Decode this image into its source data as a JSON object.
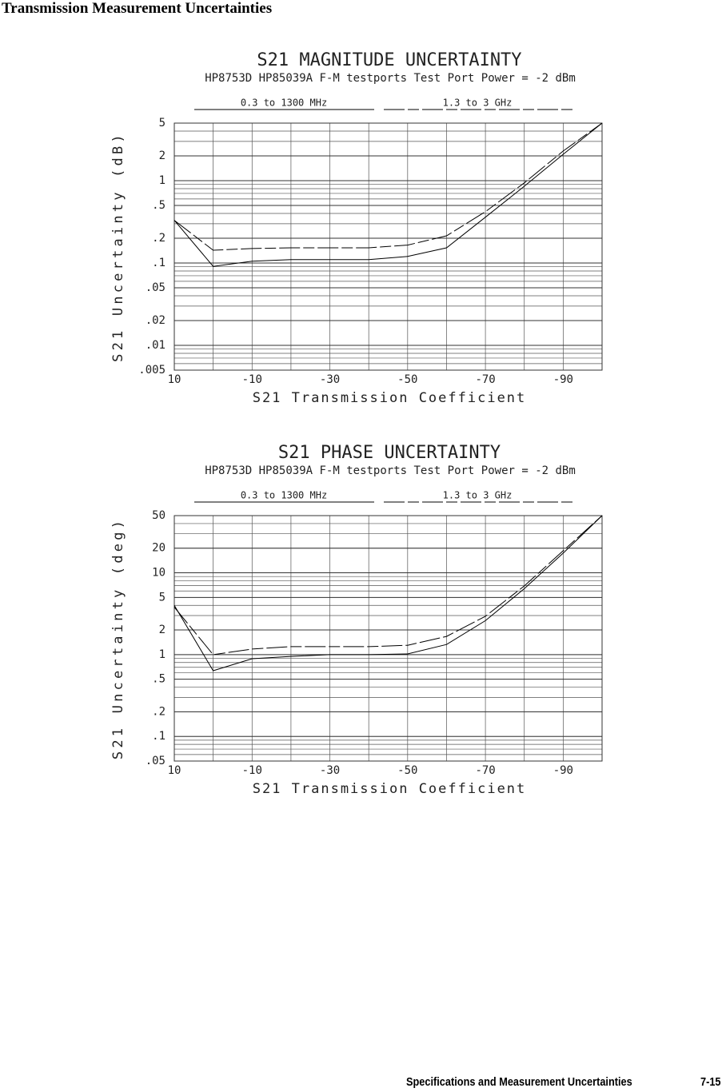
{
  "header": {
    "title": "Transmission Measurement Uncertainties"
  },
  "footer": {
    "section": "Specifications and Measurement Uncertainties",
    "page": "7-15"
  },
  "chart_data": [
    {
      "type": "line",
      "title": "S21 MAGNITUDE UNCERTAINTY",
      "subtitle": "HP8753D HP85039A F-M testports Test Port Power = -2 dBm",
      "xlabel": "S21 Transmission Coefficient",
      "ylabel": "S21 Uncertainty (dB)",
      "x": [
        10,
        0,
        -10,
        -20,
        -30,
        -40,
        -50,
        -60,
        -70,
        -80,
        -90,
        -100
      ],
      "series": [
        {
          "name": "0.3 to 1300 MHz",
          "color": "#000000",
          "dashed": false,
          "values": [
            0.33,
            0.091,
            0.105,
            0.11,
            0.11,
            0.11,
            0.12,
            0.153,
            0.36,
            0.855,
            2.09,
            5
          ]
        },
        {
          "name": "1.3 to 3 GHz",
          "color": "#000000",
          "dashed": true,
          "values": [
            0.33,
            0.143,
            0.15,
            0.153,
            0.153,
            0.153,
            0.165,
            0.214,
            0.42,
            0.94,
            2.29,
            5
          ]
        }
      ],
      "xlim": [
        10,
        -100
      ],
      "xticks": [
        10,
        -10,
        -30,
        -50,
        -70,
        -90
      ],
      "xgrid": [
        10,
        0,
        -10,
        -20,
        -30,
        -40,
        -50,
        -60,
        -70,
        -80,
        -90,
        -100
      ],
      "ylim": [
        0.005,
        5
      ],
      "yscale": "log",
      "grid": true,
      "yticks": [
        5,
        2,
        1,
        {
          "value": 0.5,
          "label": ".5"
        },
        {
          "value": 0.2,
          "label": ".2"
        },
        {
          "value": 0.1,
          "label": ".1"
        },
        {
          "value": 0.05,
          "label": ".05"
        },
        {
          "value": 0.02,
          "label": ".02"
        },
        {
          "value": 0.01,
          "label": ".01"
        },
        {
          "value": 0.005,
          "label": ".005"
        }
      ]
    },
    {
      "type": "line",
      "title": "S21 PHASE UNCERTAINTY",
      "subtitle": "HP8753D HP85039A F-M testports Test Port Power = -2 dBm",
      "xlabel": "S21 Transmission Coefficient",
      "ylabel": "S21 Uncertainty (deg)",
      "x": [
        10,
        0,
        -10,
        -20,
        -30,
        -40,
        -50,
        -60,
        -70,
        -80,
        -90,
        -100
      ],
      "series": [
        {
          "name": "0.3 to 1300 MHz",
          "color": "#000000",
          "dashed": false,
          "values": [
            4.0,
            0.635,
            0.89,
            0.95,
            1.0,
            1.0,
            1.02,
            1.33,
            2.6,
            6.4,
            17.4,
            50
          ]
        },
        {
          "name": "1.3 to 3 GHz",
          "color": "#000000",
          "dashed": true,
          "values": [
            3.8,
            1.0,
            1.17,
            1.25,
            1.25,
            1.25,
            1.3,
            1.67,
            2.94,
            6.9,
            18.6,
            50
          ]
        }
      ],
      "xlim": [
        10,
        -100
      ],
      "xticks": [
        10,
        -10,
        -30,
        -50,
        -70,
        -90
      ],
      "xgrid": [
        10,
        0,
        -10,
        -20,
        -30,
        -40,
        -50,
        -60,
        -70,
        -80,
        -90,
        -100
      ],
      "ylim": [
        0.05,
        50
      ],
      "yscale": "log",
      "grid": true,
      "yticks": [
        50,
        20,
        10,
        5,
        2,
        1,
        {
          "value": 0.5,
          "label": ".5"
        },
        {
          "value": 0.2,
          "label": ".2"
        },
        {
          "value": 0.1,
          "label": ".1"
        },
        {
          "value": 0.05,
          "label": ".05"
        }
      ]
    }
  ]
}
